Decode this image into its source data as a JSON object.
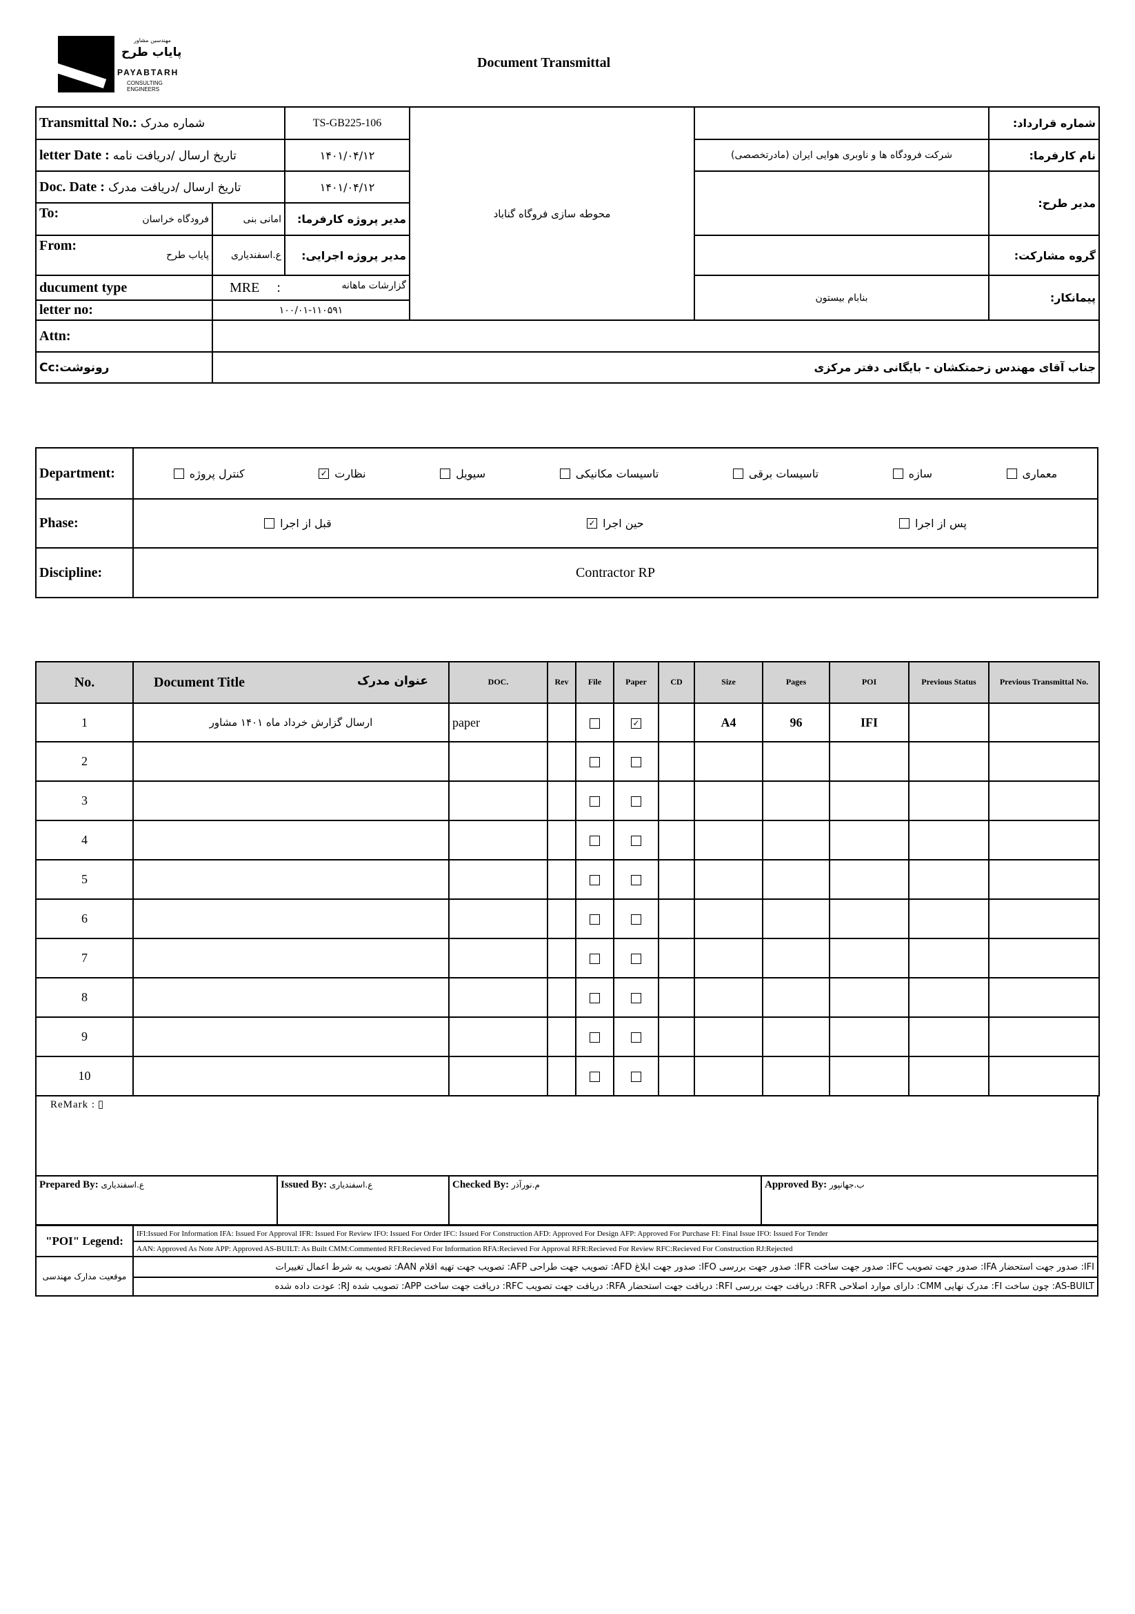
{
  "logo": {
    "fa_sub": "مهندسین مشاور",
    "fa_name": "پایاب طرح",
    "en": "PAYABTARH",
    "en2": "CONSULTING ENGINEERS"
  },
  "title": "Document Transmittal",
  "header": {
    "transmittal_no_label": "Transmittal No.:",
    "transmittal_no_label_fa": "شماره مدرک",
    "transmittal_no": "TS-GB225-106",
    "letter_date_label": "letter Date :",
    "letter_date_label_fa": "تاریخ ارسال /دریافت نامه",
    "letter_date": "۱۴۰۱/۰۴/۱۲",
    "doc_date_label": "Doc. Date :",
    "doc_date_label_fa": "تاریخ ارسال /دریافت مدرک",
    "doc_date": "۱۴۰۱/۰۴/۱۲",
    "to_label": "To:",
    "to_org": "فرودگاه خراسان",
    "to_person": "امانی بنی",
    "to_role": "مدیر پروژه کارفرما:",
    "from_label": "From:",
    "from_org": "پایاب طرح",
    "from_person": "ع.اسفندیاری",
    "from_role": "مدیر پروژه اجرایی:",
    "doc_type_label": "ducument type",
    "doc_type_code": "MRE",
    "doc_type_sep": ":",
    "doc_type_fa": "گزارشات ماهانه",
    "letter_no_label": "letter no:",
    "letter_no": "۱۰۰/۰۱-۱۱۰۵۹۱",
    "project": "محوطه سازی فروگاه گناباد",
    "contract_no_label": "شماره قرارداد:",
    "contract_no": "",
    "employer_label": "نام کارفرما:",
    "employer": "شرکت فرودگاه ها و ناوبری هوایی ایران (مادرتخصصی)",
    "plan_manager_label": "مدیر طرح:",
    "plan_manager": "",
    "partnership_label": "گروه مشارکت:",
    "partnership": "",
    "contractor_label": "پیمانکار:",
    "contractor": "بنابام بیستون",
    "attn_label": "Attn:",
    "attn": "",
    "cc_label": "Cc:رونوشت",
    "cc": "جناب آقای مهندس زحمتکشان - بایگانی دفتر مرکزی"
  },
  "classification": {
    "department_label": "Department:",
    "departments": [
      {
        "label": "معماری",
        "checked": false
      },
      {
        "label": "سازه",
        "checked": false
      },
      {
        "label": "تاسیسات برقی",
        "checked": false
      },
      {
        "label": "تاسیسات مکانیکی",
        "checked": false
      },
      {
        "label": "سیویل",
        "checked": false
      },
      {
        "label": "نظارت",
        "checked": true
      },
      {
        "label": "کنترل پروژه",
        "checked": false
      }
    ],
    "phase_label": "Phase:",
    "phases": [
      {
        "label": "پس از اجرا",
        "checked": false
      },
      {
        "label": "حین اجرا",
        "checked": true
      },
      {
        "label": "قبل از اجرا",
        "checked": false
      }
    ],
    "discipline_label": "Discipline:",
    "discipline": "Contractor RP"
  },
  "documents": {
    "headers": {
      "no": "No.",
      "title": "Document Title",
      "title_fa": "عنوان مدرک",
      "doc": "DOC.",
      "rev": "Rev",
      "file": "File",
      "paper": "Paper",
      "cd": "CD",
      "size": "Size",
      "pages": "Pages",
      "poi": "POI",
      "prev_status": "Previous Status",
      "prev_transmittal": "Previous Transmittal No."
    },
    "rows": [
      {
        "no": "1",
        "title": "ارسال گزارش خرداد ماه ۱۴۰۱ مشاور",
        "doc": "paper",
        "rev": "",
        "file": false,
        "paper": true,
        "cd": "",
        "size": "A4",
        "pages": "96",
        "poi": "IFI",
        "prev_status": "",
        "prev_transmittal": ""
      },
      {
        "no": "2",
        "file": false,
        "paper": false
      },
      {
        "no": "3",
        "file": false,
        "paper": false
      },
      {
        "no": "4",
        "file": false,
        "paper": false
      },
      {
        "no": "5",
        "file": false,
        "paper": false
      },
      {
        "no": "6",
        "file": false,
        "paper": false
      },
      {
        "no": "7",
        "file": false,
        "paper": false
      },
      {
        "no": "8",
        "file": false,
        "paper": false
      },
      {
        "no": "9",
        "file": false,
        "paper": false
      },
      {
        "no": "10",
        "file": false,
        "paper": false
      }
    ],
    "check_mark": "✓"
  },
  "remark": {
    "label": "ReMark :",
    "value": "▯"
  },
  "signatures": {
    "prepared_label": "Prepared By:",
    "prepared": "ع.اسفندیاری",
    "issued_label": "Issued By:",
    "issued": "ع.اسفندیاری",
    "checked_label": "Checked By:",
    "checked": "م.نورآذر",
    "approved_label": "Approved By:",
    "approved": "ب.جهانپور"
  },
  "legend": {
    "label": "\"POI\" Legend:",
    "en1": "IFI:Issued For Information  IFA: Issued For Approval  IFR: Issued For Review  IFO: Issued For Order  IFC: Issued For Construction AFD: Approved For Design AFP: Approved For Purchase  FI: Final Issue  IFO: Issued For Tender",
    "en2": "AAN: Approved As Note  APP: Approved  AS-BUILT: As Built CMM:Commented  RFI:Recieved For Information  RFA:Recieved For Approval  RFR:Recieved For Review  RFC:Recieved For Construction  RJ:Rejected",
    "fa_label": "موقعیت مدارک مهندسی",
    "fa1": "IFI: صدور جهت استحضار   IFA: صدور جهت تصویب   IFC: صدور جهت ساخت   IFR: صدور جهت بررسی   IFO: صدور جهت ابلاغ   AFD: تصویب جهت طراحی   AFP: تصویب جهت تهیه اقلام   AAN: تصویب به شرط اعمال تغییرات",
    "fa2": "AS-BUILT: چون ساخت   FI: مدرک نهایی   CMM: دارای موارد اصلاحی   RFR: دریافت جهت بررسی   RFI: دریافت جهت استحضار   RFA: دریافت جهت تصویب   RFC: دریافت جهت ساخت   APP: تصویب شده   RJ: عودت داده شده"
  }
}
